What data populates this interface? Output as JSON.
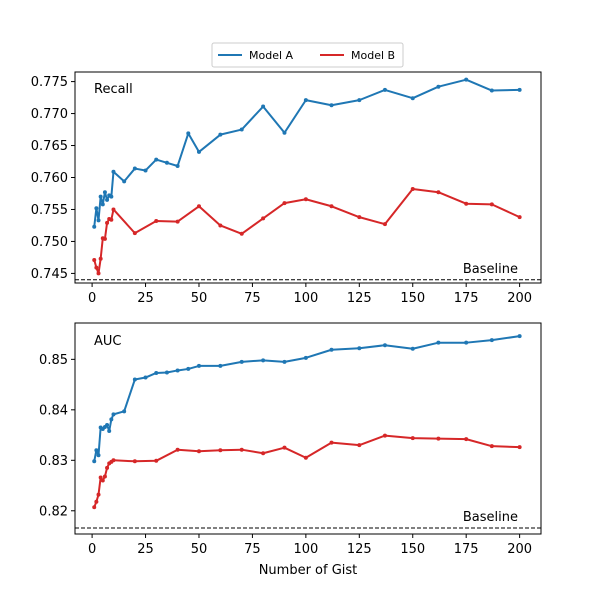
{
  "chart_data": {
    "type": "line",
    "xlabel": "Number of Gist",
    "legend": {
      "placement": "top-center",
      "entries": [
        {
          "name": "Model A",
          "color": "#1f77b4"
        },
        {
          "name": "Model B",
          "color": "#d62728"
        }
      ]
    },
    "panels": [
      {
        "label": "Recall",
        "baseline_label": "Baseline",
        "baseline": 0.744,
        "xlim": [
          -8,
          210
        ],
        "ylim": [
          0.7435,
          0.7765
        ],
        "xticks": [
          0,
          25,
          50,
          75,
          100,
          125,
          150,
          175,
          200
        ],
        "yticks": [
          0.745,
          0.75,
          0.755,
          0.76,
          0.765,
          0.77,
          0.775
        ],
        "ytick_labels": [
          "0.745",
          "0.750",
          "0.755",
          "0.760",
          "0.765",
          "0.770",
          "0.775"
        ],
        "grid": false,
        "series": [
          {
            "name": "Model A",
            "color": "#1f77b4",
            "x": [
              1,
              2,
              3,
              4,
              5,
              6,
              7,
              8,
              9,
              10,
              15,
              20,
              25,
              30,
              35,
              40,
              45,
              50,
              60,
              70,
              80,
              90,
              100,
              112,
              125,
              137,
              150,
              162,
              175,
              187,
              200
            ],
            "y": [
              0.7523,
              0.7552,
              0.7533,
              0.757,
              0.7558,
              0.7577,
              0.7565,
              0.7572,
              0.757,
              0.7609,
              0.7594,
              0.7614,
              0.7611,
              0.7628,
              0.7623,
              0.7618,
              0.7669,
              0.764,
              0.7667,
              0.7675,
              0.7711,
              0.767,
              0.7721,
              0.7713,
              0.7721,
              0.7737,
              0.7724,
              0.7742,
              0.7753,
              0.7736,
              0.7737
            ]
          },
          {
            "name": "Model B",
            "color": "#d62728",
            "x": [
              1,
              2,
              3,
              4,
              5,
              6,
              7,
              8,
              9,
              10,
              20,
              30,
              40,
              50,
              60,
              70,
              80,
              90,
              100,
              112,
              125,
              137,
              150,
              162,
              175,
              187,
              200
            ],
            "y": [
              0.7471,
              0.7459,
              0.745,
              0.7473,
              0.7505,
              0.7504,
              0.7529,
              0.7535,
              0.7534,
              0.755,
              0.7513,
              0.7532,
              0.7531,
              0.7555,
              0.7525,
              0.7512,
              0.7536,
              0.756,
              0.7566,
              0.7555,
              0.7538,
              0.7527,
              0.7582,
              0.7577,
              0.7559,
              0.7558,
              0.7538
            ]
          }
        ]
      },
      {
        "label": "AUC",
        "baseline_label": "Baseline",
        "baseline": 0.8166,
        "xlim": [
          -8,
          210
        ],
        "ylim": [
          0.8154,
          0.8572
        ],
        "xticks": [
          0,
          25,
          50,
          75,
          100,
          125,
          150,
          175,
          200
        ],
        "yticks": [
          0.82,
          0.83,
          0.84,
          0.85
        ],
        "ytick_labels": [
          "0.82",
          "0.83",
          "0.84",
          "0.85"
        ],
        "grid": false,
        "series": [
          {
            "name": "Model A",
            "color": "#1f77b4",
            "x": [
              1,
              2,
              3,
              4,
              5,
              6,
              7,
              8,
              9,
              10,
              15,
              20,
              25,
              30,
              35,
              40,
              45,
              50,
              60,
              70,
              80,
              90,
              100,
              112,
              125,
              137,
              150,
              162,
              175,
              187,
              200
            ],
            "y": [
              0.8298,
              0.832,
              0.831,
              0.8365,
              0.8362,
              0.8366,
              0.837,
              0.8358,
              0.8381,
              0.8391,
              0.8397,
              0.846,
              0.8464,
              0.8473,
              0.8474,
              0.8478,
              0.8481,
              0.8487,
              0.8487,
              0.8495,
              0.8498,
              0.8495,
              0.8503,
              0.8519,
              0.8522,
              0.8528,
              0.8521,
              0.8533,
              0.8533,
              0.8538,
              0.8546
            ]
          },
          {
            "name": "Model B",
            "color": "#d62728",
            "x": [
              1,
              2,
              3,
              4,
              5,
              6,
              7,
              8,
              9,
              10,
              20,
              30,
              40,
              50,
              60,
              70,
              80,
              90,
              100,
              112,
              125,
              137,
              150,
              162,
              175,
              187,
              200
            ],
            "y": [
              0.8207,
              0.8218,
              0.8232,
              0.8266,
              0.826,
              0.8268,
              0.8285,
              0.8294,
              0.8297,
              0.83,
              0.8298,
              0.8299,
              0.8321,
              0.8318,
              0.832,
              0.8321,
              0.8314,
              0.8325,
              0.8305,
              0.8335,
              0.833,
              0.8349,
              0.8344,
              0.8343,
              0.8342,
              0.8328,
              0.8326
            ]
          }
        ]
      }
    ]
  }
}
